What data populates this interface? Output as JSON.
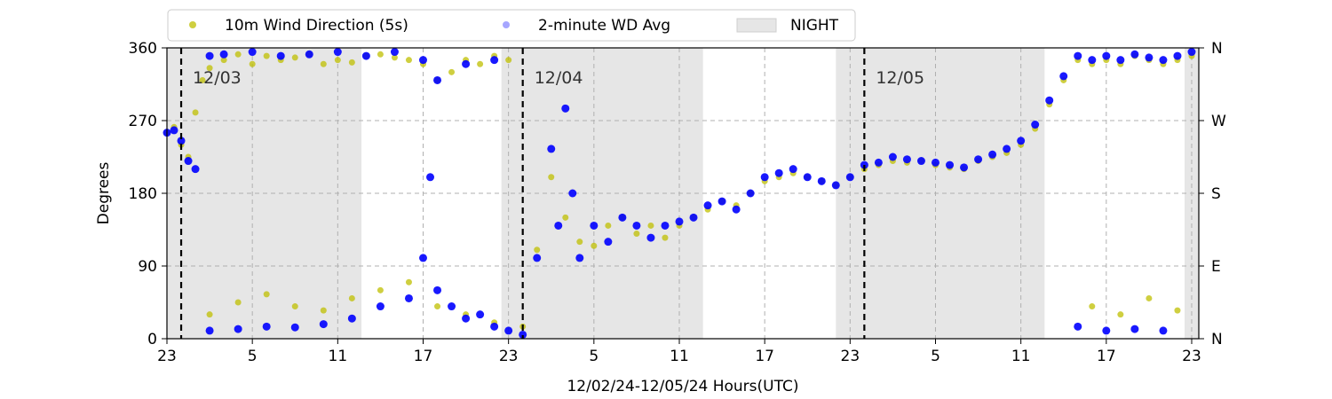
{
  "chart_data": {
    "type": "scatter",
    "title": "",
    "xlabel": "12/02/24-12/05/24  Hours(UTC)",
    "ylabel": "Degrees",
    "ylim": [
      0,
      360
    ],
    "yticks": [
      0,
      90,
      180,
      270,
      360
    ],
    "y2_ticks": [
      {
        "value": 0,
        "label": "N"
      },
      {
        "value": 90,
        "label": "E"
      },
      {
        "value": 180,
        "label": "S"
      },
      {
        "value": 270,
        "label": "W"
      },
      {
        "value": 360,
        "label": "N"
      }
    ],
    "xlim": [
      "12/02 23:00",
      "12/05 23:30"
    ],
    "x_ticks": [
      {
        "t": "12/02 23:00",
        "label": "23"
      },
      {
        "t": "12/03 05:00",
        "label": "5"
      },
      {
        "t": "12/03 11:00",
        "label": "11"
      },
      {
        "t": "12/03 17:00",
        "label": "17"
      },
      {
        "t": "12/03 23:00",
        "label": "23"
      },
      {
        "t": "12/04 05:00",
        "label": "5"
      },
      {
        "t": "12/04 11:00",
        "label": "11"
      },
      {
        "t": "12/04 17:00",
        "label": "17"
      },
      {
        "t": "12/04 23:00",
        "label": "23"
      },
      {
        "t": "12/05 05:00",
        "label": "5"
      },
      {
        "t": "12/05 11:00",
        "label": "11"
      },
      {
        "t": "12/05 17:00",
        "label": "17"
      },
      {
        "t": "12/05 23:00",
        "label": "23"
      }
    ],
    "grid": true,
    "legend_position": "top, above plot",
    "night_periods": [
      {
        "start": "12/02 23:00",
        "end": "12/03 12:40"
      },
      {
        "start": "12/03 22:30",
        "end": "12/04 12:40"
      },
      {
        "start": "12/04 22:00",
        "end": "12/05 12:40"
      },
      {
        "start": "12/05 22:30",
        "end": "12/05 23:30"
      }
    ],
    "day_markers": [
      {
        "t": "12/03 00:00",
        "label": "12/03"
      },
      {
        "t": "12/04 00:00",
        "label": "12/04"
      },
      {
        "t": "12/05 00:00",
        "label": "12/05"
      }
    ],
    "series": [
      {
        "name": "10m Wind Direction (5s)",
        "color": "#bfbf00",
        "marker": "circle",
        "points": [
          [
            "12/02 23:00",
            255
          ],
          [
            "12/02 23:30",
            262
          ],
          [
            "12/03 00:00",
            240
          ],
          [
            "12/03 00:30",
            225
          ],
          [
            "12/03 01:00",
            280
          ],
          [
            "12/03 01:30",
            320
          ],
          [
            "12/03 02:00",
            335
          ],
          [
            "12/03 03:00",
            345
          ],
          [
            "12/03 04:00",
            352
          ],
          [
            "12/03 05:00",
            340
          ],
          [
            "12/03 06:00",
            350
          ],
          [
            "12/03 07:00",
            345
          ],
          [
            "12/03 08:00",
            348
          ],
          [
            "12/03 09:00",
            352
          ],
          [
            "12/03 10:00",
            340
          ],
          [
            "12/03 11:00",
            345
          ],
          [
            "12/03 12:00",
            342
          ],
          [
            "12/03 13:00",
            350
          ],
          [
            "12/03 14:00",
            352
          ],
          [
            "12/03 15:00",
            348
          ],
          [
            "12/03 16:00",
            345
          ],
          [
            "12/03 17:00",
            340
          ],
          [
            "12/03 18:00",
            320
          ],
          [
            "12/03 19:00",
            330
          ],
          [
            "12/03 20:00",
            345
          ],
          [
            "12/03 21:00",
            340
          ],
          [
            "12/03 22:00",
            350
          ],
          [
            "12/03 23:00",
            345
          ],
          [
            "12/03 02:00",
            30
          ],
          [
            "12/03 04:00",
            45
          ],
          [
            "12/03 06:00",
            55
          ],
          [
            "12/03 08:00",
            40
          ],
          [
            "12/03 10:00",
            35
          ],
          [
            "12/03 12:00",
            50
          ],
          [
            "12/03 14:00",
            60
          ],
          [
            "12/03 16:00",
            70
          ],
          [
            "12/03 18:00",
            40
          ],
          [
            "12/03 20:00",
            30
          ],
          [
            "12/03 22:00",
            20
          ],
          [
            "12/04 00:00",
            15
          ],
          [
            "12/04 01:00",
            110
          ],
          [
            "12/04 02:00",
            200
          ],
          [
            "12/04 03:00",
            150
          ],
          [
            "12/04 04:00",
            120
          ],
          [
            "12/04 05:00",
            115
          ],
          [
            "12/04 06:00",
            140
          ],
          [
            "12/04 07:00",
            150
          ],
          [
            "12/04 08:00",
            130
          ],
          [
            "12/04 09:00",
            140
          ],
          [
            "12/04 10:00",
            125
          ],
          [
            "12/04 11:00",
            140
          ],
          [
            "12/04 12:00",
            150
          ],
          [
            "12/04 13:00",
            160
          ],
          [
            "12/04 14:00",
            170
          ],
          [
            "12/04 15:00",
            165
          ],
          [
            "12/04 16:00",
            180
          ],
          [
            "12/04 17:00",
            195
          ],
          [
            "12/04 18:00",
            200
          ],
          [
            "12/04 19:00",
            205
          ],
          [
            "12/04 20:00",
            200
          ],
          [
            "12/04 21:00",
            195
          ],
          [
            "12/04 22:00",
            190
          ],
          [
            "12/04 23:00",
            200
          ],
          [
            "12/05 00:00",
            210
          ],
          [
            "12/05 01:00",
            215
          ],
          [
            "12/05 02:00",
            220
          ],
          [
            "12/05 03:00",
            218
          ],
          [
            "12/05 04:00",
            220
          ],
          [
            "12/05 05:00",
            215
          ],
          [
            "12/05 06:00",
            212
          ],
          [
            "12/05 07:00",
            210
          ],
          [
            "12/05 08:00",
            220
          ],
          [
            "12/05 09:00",
            225
          ],
          [
            "12/05 10:00",
            230
          ],
          [
            "12/05 11:00",
            240
          ],
          [
            "12/05 12:00",
            260
          ],
          [
            "12/05 13:00",
            290
          ],
          [
            "12/05 14:00",
            320
          ],
          [
            "12/05 15:00",
            345
          ],
          [
            "12/05 16:00",
            340
          ],
          [
            "12/05 17:00",
            345
          ],
          [
            "12/05 18:00",
            340
          ],
          [
            "12/05 19:00",
            350
          ],
          [
            "12/05 20:00",
            345
          ],
          [
            "12/05 21:00",
            340
          ],
          [
            "12/05 22:00",
            345
          ],
          [
            "12/05 23:00",
            350
          ],
          [
            "12/05 16:00",
            40
          ],
          [
            "12/05 18:00",
            30
          ],
          [
            "12/05 20:00",
            50
          ],
          [
            "12/05 22:00",
            35
          ]
        ]
      },
      {
        "name": "2-minute WD Avg",
        "color": "#0000ff",
        "marker": "circle",
        "points": [
          [
            "12/02 23:00",
            255
          ],
          [
            "12/02 23:30",
            258
          ],
          [
            "12/03 00:00",
            245
          ],
          [
            "12/03 00:30",
            220
          ],
          [
            "12/03 01:00",
            210
          ],
          [
            "12/03 02:00",
            350
          ],
          [
            "12/03 03:00",
            352
          ],
          [
            "12/03 05:00",
            355
          ],
          [
            "12/03 07:00",
            350
          ],
          [
            "12/03 09:00",
            352
          ],
          [
            "12/03 11:00",
            355
          ],
          [
            "12/03 13:00",
            350
          ],
          [
            "12/03 15:00",
            355
          ],
          [
            "12/03 17:00",
            345
          ],
          [
            "12/03 18:00",
            320
          ],
          [
            "12/03 20:00",
            340
          ],
          [
            "12/03 22:00",
            345
          ],
          [
            "12/03 02:00",
            10
          ],
          [
            "12/03 04:00",
            12
          ],
          [
            "12/03 06:00",
            15
          ],
          [
            "12/03 08:00",
            14
          ],
          [
            "12/03 10:00",
            18
          ],
          [
            "12/03 12:00",
            25
          ],
          [
            "12/03 14:00",
            40
          ],
          [
            "12/03 16:00",
            50
          ],
          [
            "12/03 17:00",
            100
          ],
          [
            "12/03 17:30",
            200
          ],
          [
            "12/03 18:00",
            60
          ],
          [
            "12/03 19:00",
            40
          ],
          [
            "12/03 20:00",
            25
          ],
          [
            "12/03 21:00",
            30
          ],
          [
            "12/03 22:00",
            15
          ],
          [
            "12/03 23:00",
            10
          ],
          [
            "12/04 00:00",
            5
          ],
          [
            "12/04 01:00",
            100
          ],
          [
            "12/04 02:00",
            235
          ],
          [
            "12/04 02:30",
            140
          ],
          [
            "12/04 03:00",
            285
          ],
          [
            "12/04 03:30",
            180
          ],
          [
            "12/04 04:00",
            100
          ],
          [
            "12/04 05:00",
            140
          ],
          [
            "12/04 06:00",
            120
          ],
          [
            "12/04 07:00",
            150
          ],
          [
            "12/04 08:00",
            140
          ],
          [
            "12/04 09:00",
            125
          ],
          [
            "12/04 10:00",
            140
          ],
          [
            "12/04 11:00",
            145
          ],
          [
            "12/04 12:00",
            150
          ],
          [
            "12/04 13:00",
            165
          ],
          [
            "12/04 14:00",
            170
          ],
          [
            "12/04 15:00",
            160
          ],
          [
            "12/04 16:00",
            180
          ],
          [
            "12/04 17:00",
            200
          ],
          [
            "12/04 18:00",
            205
          ],
          [
            "12/04 19:00",
            210
          ],
          [
            "12/04 20:00",
            200
          ],
          [
            "12/04 21:00",
            195
          ],
          [
            "12/04 22:00",
            190
          ],
          [
            "12/04 23:00",
            200
          ],
          [
            "12/05 00:00",
            215
          ],
          [
            "12/05 01:00",
            218
          ],
          [
            "12/05 02:00",
            225
          ],
          [
            "12/05 03:00",
            222
          ],
          [
            "12/05 04:00",
            220
          ],
          [
            "12/05 05:00",
            218
          ],
          [
            "12/05 06:00",
            215
          ],
          [
            "12/05 07:00",
            212
          ],
          [
            "12/05 08:00",
            222
          ],
          [
            "12/05 09:00",
            228
          ],
          [
            "12/05 10:00",
            235
          ],
          [
            "12/05 11:00",
            245
          ],
          [
            "12/05 12:00",
            265
          ],
          [
            "12/05 13:00",
            295
          ],
          [
            "12/05 14:00",
            325
          ],
          [
            "12/05 15:00",
            350
          ],
          [
            "12/05 16:00",
            345
          ],
          [
            "12/05 17:00",
            350
          ],
          [
            "12/05 18:00",
            345
          ],
          [
            "12/05 19:00",
            352
          ],
          [
            "12/05 20:00",
            348
          ],
          [
            "12/05 21:00",
            345
          ],
          [
            "12/05 22:00",
            350
          ],
          [
            "12/05 23:00",
            355
          ],
          [
            "12/05 15:00",
            15
          ],
          [
            "12/05 17:00",
            10
          ],
          [
            "12/05 19:00",
            12
          ],
          [
            "12/05 21:00",
            10
          ]
        ]
      }
    ]
  },
  "legend": {
    "items": [
      {
        "label": "10m Wind Direction (5s)",
        "kind": "marker",
        "color": "#bfbf00"
      },
      {
        "label": "2-minute WD Avg",
        "kind": "marker",
        "color": "#0000ff"
      },
      {
        "label": "NIGHT",
        "kind": "patch",
        "color": "#e6e6e6"
      }
    ]
  }
}
